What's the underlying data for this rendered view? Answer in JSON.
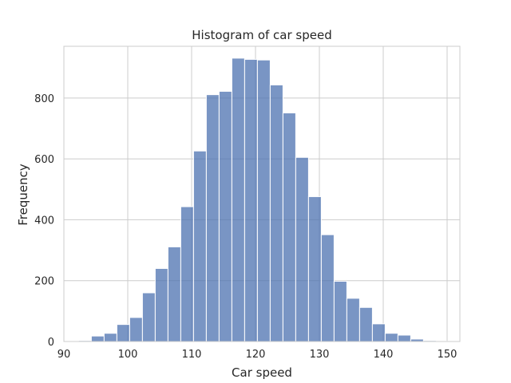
{
  "chart_data": {
    "type": "bar",
    "title": "Histogram of car speed",
    "xlabel": "Car speed",
    "ylabel": "Frequency",
    "xlim": [
      90,
      152
    ],
    "ylim": [
      0,
      970
    ],
    "grid": true,
    "bar_color": "#4c72b0",
    "grid_color": "#cccccc",
    "bin_edges": [
      92.3,
      94.3,
      96.3,
      98.3,
      100.3,
      102.3,
      104.3,
      106.3,
      108.3,
      110.3,
      112.3,
      114.3,
      116.3,
      118.3,
      120.3,
      122.3,
      124.3,
      126.3,
      128.3,
      130.3,
      132.3,
      134.3,
      136.3,
      138.3,
      140.3,
      142.3,
      144.3,
      146.3,
      148.3,
      150.3
    ],
    "values": [
      3,
      18,
      27,
      56,
      79,
      160,
      240,
      311,
      443,
      626,
      811,
      822,
      931,
      927,
      925,
      843,
      751,
      605,
      476,
      351,
      198,
      142,
      112,
      58,
      27,
      21,
      8,
      3,
      1
    ],
    "x_ticks": [
      90,
      100,
      110,
      120,
      130,
      140,
      150
    ],
    "x_tick_labels": [
      "90",
      "100",
      "110",
      "120",
      "130",
      "140",
      "150"
    ],
    "y_ticks": [
      0,
      200,
      400,
      600,
      800
    ],
    "y_tick_labels": [
      "0",
      "200",
      "400",
      "600",
      "800"
    ]
  }
}
